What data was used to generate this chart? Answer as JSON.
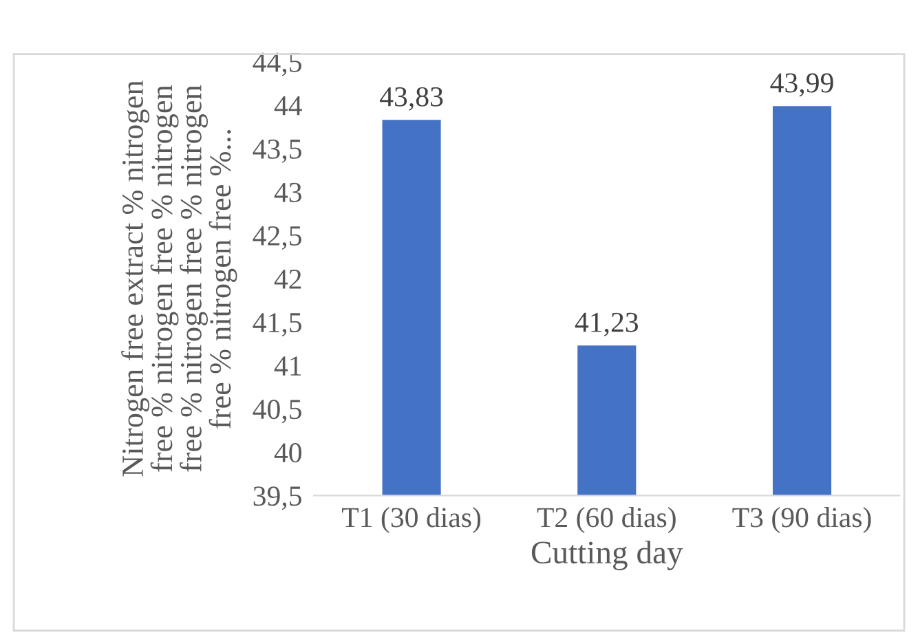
{
  "chart_data": {
    "type": "bar",
    "xlabel": "Cutting day",
    "ylabel": "Nitrogen free extract % nitrogen\nfree % nitrogen free % nitrogen\nfree % nitrogen free % nitrogen\nfree % nitrogen free %...",
    "categories": [
      "T1 (30 dias)",
      "T2 (60 dias)",
      "T3 (90 dias)"
    ],
    "values": [
      43.83,
      41.23,
      43.99
    ],
    "value_labels": [
      "43,83",
      "41,23",
      "43,99"
    ],
    "color": "#4472c4",
    "ylim": [
      39.5,
      44.5
    ],
    "yticks": [
      {
        "value": 39.5,
        "label": "39,5"
      },
      40,
      {
        "value": 40.5,
        "label": "40,5"
      },
      41,
      {
        "value": 41.5,
        "label": "41,5"
      },
      42,
      {
        "value": 42.5,
        "label": "42,5"
      },
      43,
      {
        "value": 43.5,
        "label": "43,5"
      },
      44,
      {
        "value": 44.5,
        "label": "44,5"
      }
    ],
    "grid": false
  }
}
